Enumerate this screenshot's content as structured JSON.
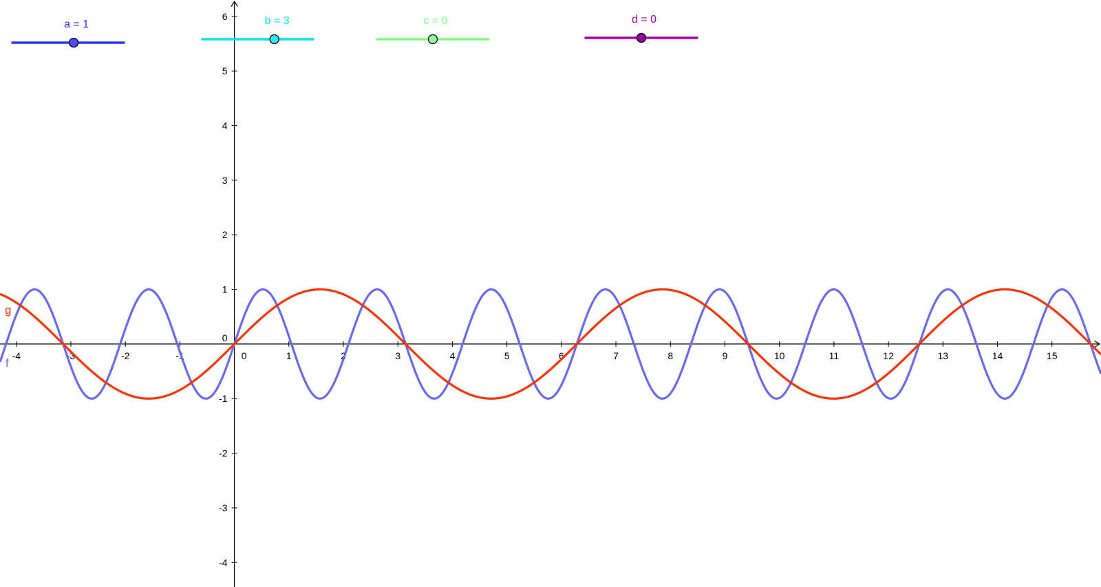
{
  "sliders": [
    {
      "id": "a",
      "label": "a = 1",
      "value": 1,
      "position": 0.55,
      "color": "#3333ff",
      "handle_color": "#4d4dff"
    },
    {
      "id": "b",
      "label": "b = 3",
      "value": 3,
      "position": 0.65,
      "color": "#00e5ee",
      "handle_color": "#33e6ee"
    },
    {
      "id": "c",
      "label": "c = 0",
      "value": 0,
      "position": 0.5,
      "color": "#80ff80",
      "handle_color": "#99ff99"
    },
    {
      "id": "d",
      "label": "d = 0",
      "value": 0,
      "position": 0.5,
      "color": "#aa00aa",
      "handle_color": "#990099"
    }
  ],
  "chart_data": {
    "type": "line",
    "xlim": [
      -4.3,
      15.9
    ],
    "ylim": [
      -4.45,
      6.3
    ],
    "x_ticks": [
      -4,
      -3,
      -2,
      -1,
      0,
      1,
      2,
      3,
      4,
      5,
      6,
      7,
      8,
      9,
      10,
      11,
      12,
      13,
      14,
      15
    ],
    "y_ticks": [
      -4,
      -3,
      -2,
      -1,
      0,
      1,
      2,
      3,
      4,
      5,
      6
    ],
    "grid": false,
    "series": [
      {
        "name": "f",
        "function": "a*sin(b*x+c)+d",
        "a": 1,
        "b": 3,
        "c": 0,
        "d": 0,
        "color": "#6a6af0",
        "label": "f"
      },
      {
        "name": "g",
        "function": "sin(x)",
        "color": "#ff3300",
        "label": "g"
      }
    ]
  }
}
